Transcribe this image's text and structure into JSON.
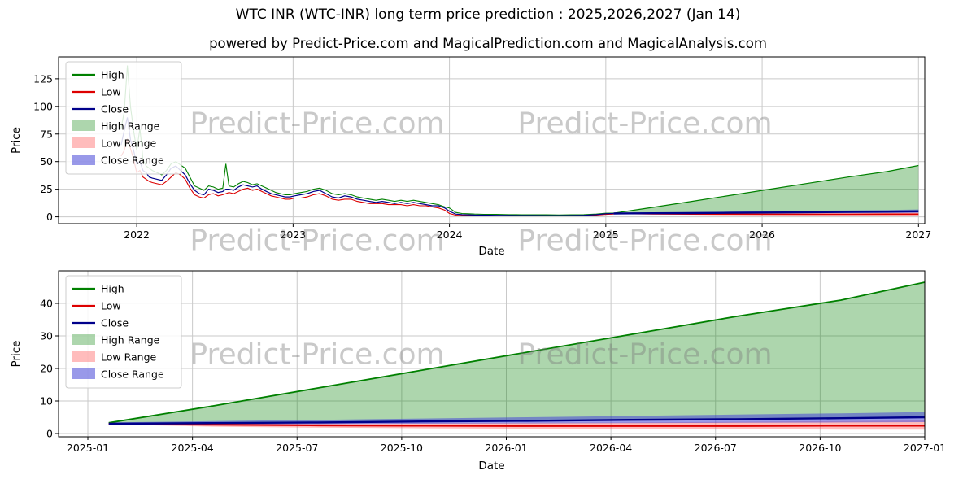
{
  "page": {
    "title": "WTC INR (WTC-INR) long term price prediction : 2025,2026,2027 (Jan 14)",
    "subtitle": "powered by Predict-Price.com and MagicalPrediction.com and MagicalAnalysis.com"
  },
  "watermark": {
    "text": "Predict-Price.com"
  },
  "legend": {
    "position": "upper left",
    "entries": [
      {
        "label": "High",
        "swatch": "line",
        "color": "#008000"
      },
      {
        "label": "Low",
        "swatch": "line",
        "color": "#dd0000"
      },
      {
        "label": "Close",
        "swatch": "line",
        "color": "#00008b"
      },
      {
        "label": "High Range",
        "swatch": "patch",
        "color": "rgba(0,128,0,0.32)"
      },
      {
        "label": "Low Range",
        "swatch": "patch",
        "color": "rgba(255,80,80,0.38)"
      },
      {
        "label": "Close Range",
        "swatch": "patch",
        "color": "rgba(70,70,215,0.55)"
      }
    ]
  },
  "chart_data": [
    {
      "type": "line",
      "title": "",
      "xlabel": "Date",
      "ylabel": "Price",
      "xlim": [
        2021.5,
        2027.04
      ],
      "ylim": [
        -6.2,
        144.8
      ],
      "grid": true,
      "x_ticks": [
        {
          "v": 2022,
          "label": "2022"
        },
        {
          "v": 2023,
          "label": "2023"
        },
        {
          "v": 2024,
          "label": "2024"
        },
        {
          "v": 2025,
          "label": "2025"
        },
        {
          "v": 2026,
          "label": "2026"
        },
        {
          "v": 2027,
          "label": "2027"
        }
      ],
      "y_ticks": [
        {
          "v": 0,
          "label": "0"
        },
        {
          "v": 25,
          "label": "25"
        },
        {
          "v": 50,
          "label": "50"
        },
        {
          "v": 75,
          "label": "75"
        },
        {
          "v": 100,
          "label": "100"
        },
        {
          "v": 125,
          "label": "125"
        }
      ],
      "series": {
        "history": {
          "x": [
            2021.9,
            2021.92,
            2021.94,
            2021.96,
            2021.98,
            2022.0,
            2022.02,
            2022.04,
            2022.06,
            2022.08,
            2022.1,
            2022.13,
            2022.16,
            2022.19,
            2022.22,
            2022.25,
            2022.28,
            2022.31,
            2022.34,
            2022.37,
            2022.4,
            2022.43,
            2022.46,
            2022.49,
            2022.52,
            2022.55,
            2022.57,
            2022.59,
            2022.62,
            2022.65,
            2022.68,
            2022.71,
            2022.74,
            2022.77,
            2022.8,
            2022.83,
            2022.86,
            2022.89,
            2022.92,
            2022.95,
            2022.98,
            2023.01,
            2023.05,
            2023.09,
            2023.13,
            2023.17,
            2023.21,
            2023.25,
            2023.29,
            2023.33,
            2023.37,
            2023.41,
            2023.45,
            2023.49,
            2023.53,
            2023.57,
            2023.61,
            2023.65,
            2023.69,
            2023.73,
            2023.77,
            2023.81,
            2023.85,
            2023.89,
            2023.93,
            2023.97,
            2024.0,
            2024.04,
            2024.08,
            2024.12,
            2024.16,
            2024.22,
            2024.3,
            2024.38,
            2024.46,
            2024.54,
            2024.62,
            2024.7,
            2024.78,
            2024.86,
            2024.94,
            2025.0,
            2025.05
          ],
          "high": [
            80,
            95,
            137,
            100,
            78,
            60,
            80,
            52,
            46,
            44,
            42,
            40,
            38,
            42,
            48,
            50,
            47,
            44,
            36,
            28,
            26,
            24,
            28,
            27,
            25,
            26,
            48,
            28,
            27,
            30,
            32,
            31,
            29,
            30,
            28,
            26,
            24,
            22,
            21,
            20,
            20,
            21,
            22,
            23,
            25,
            26,
            24,
            21,
            20,
            21,
            20,
            18,
            17,
            16,
            15,
            16,
            15,
            14,
            15,
            14,
            15,
            14,
            13,
            12,
            11,
            9,
            8,
            4,
            3,
            2.8,
            2.5,
            2.3,
            2.2,
            2,
            1.9,
            1.8,
            1.8,
            1.7,
            1.8,
            2,
            2.5,
            3.2,
            3.3
          ],
          "low": [
            55,
            60,
            70,
            62,
            52,
            40,
            42,
            36,
            34,
            32,
            31,
            30,
            29,
            32,
            36,
            40,
            38,
            34,
            26,
            20,
            18,
            17,
            20,
            21,
            19,
            20,
            21,
            22,
            21,
            23,
            25,
            26,
            24,
            25,
            23,
            21,
            19,
            18,
            17,
            16,
            16,
            17,
            17,
            18,
            20,
            21,
            19,
            16,
            15,
            16,
            16,
            14,
            13,
            12,
            12,
            12,
            11,
            11,
            11,
            10,
            11,
            10,
            10,
            9,
            8,
            6,
            3,
            1.5,
            1.2,
            1.2,
            1.1,
            1,
            1,
            0.9,
            0.9,
            0.8,
            0.8,
            0.8,
            0.9,
            1,
            1.5,
            2.2,
            2.5
          ],
          "close": [
            65,
            78,
            90,
            70,
            60,
            48,
            50,
            42,
            40,
            36,
            35,
            34,
            33,
            38,
            44,
            46,
            42,
            38,
            30,
            24,
            21,
            20,
            25,
            24,
            22,
            23,
            25,
            25,
            24,
            27,
            29,
            28,
            27,
            28,
            25,
            23,
            21,
            20,
            19,
            18,
            18,
            19,
            20,
            21,
            23,
            24,
            21,
            18,
            17,
            19,
            18,
            16,
            15,
            14,
            13,
            14,
            13,
            12,
            13,
            12,
            13,
            12,
            11,
            10,
            10,
            8,
            5,
            2.5,
            2,
            1.8,
            1.6,
            1.5,
            1.4,
            1.3,
            1.2,
            1.2,
            1.1,
            1.1,
            1.2,
            1.4,
            2,
            2.8,
            3.0
          ]
        },
        "prediction": {
          "x": [
            2025.05,
            2025.3,
            2025.55,
            2025.8,
            2026.05,
            2026.3,
            2026.55,
            2026.8,
            2027.0
          ],
          "close": [
            3.0,
            3.2,
            3.4,
            3.7,
            3.9,
            4.2,
            4.4,
            4.7,
            5.0
          ],
          "low": [
            3.0,
            2.7,
            2.5,
            2.4,
            2.3,
            2.3,
            2.3,
            2.4,
            2.4
          ],
          "high_range_upper": [
            3.3,
            8.5,
            14,
            19.5,
            25,
            30.5,
            36,
            41,
            46.5
          ],
          "close_range_upper": [
            3.4,
            3.8,
            4.2,
            4.6,
            5.0,
            5.4,
            5.8,
            6.2,
            6.6
          ],
          "close_range_lower": [
            2.8,
            2.8,
            2.9,
            3.0,
            3.1,
            3.2,
            3.3,
            3.4,
            3.5
          ],
          "low_range_upper": [
            3.1,
            3.1,
            3.1,
            3.2,
            3.3,
            3.4,
            3.6,
            3.8,
            4.0
          ],
          "low_range_lower": [
            2.8,
            2.1,
            1.8,
            1.6,
            1.5,
            1.4,
            1.3,
            1.2,
            1.2
          ]
        }
      },
      "bands": [
        {
          "name": "high-range",
          "x": "prediction.x",
          "upper": "prediction.high_range_upper",
          "lower": "prediction.close",
          "color": "rgba(0,128,0,0.32)"
        },
        {
          "name": "low-range",
          "x": "prediction.x",
          "upper": "prediction.low_range_upper",
          "lower": "prediction.low_range_lower",
          "color": "rgba(255,80,80,0.38)"
        },
        {
          "name": "close-range",
          "x": "prediction.x",
          "upper": "prediction.close_range_upper",
          "lower": "prediction.close_range_lower",
          "color": "rgba(70,70,215,0.55)"
        }
      ],
      "lines": [
        {
          "name": "high",
          "x": "history.x",
          "y": "history.high",
          "color": "#008000",
          "width": 1.1
        },
        {
          "name": "low",
          "x": "history.x",
          "y": "history.low",
          "color": "#dd0000",
          "width": 1.1
        },
        {
          "name": "close",
          "x": "history.x",
          "y": "history.close",
          "color": "#00008b",
          "width": 1.2
        },
        {
          "name": "high-pred",
          "x": "prediction.x",
          "y": "prediction.high_range_upper",
          "color": "#008000",
          "width": 1.2
        },
        {
          "name": "low-pred",
          "x": "prediction.x",
          "y": "prediction.low",
          "color": "#dd0000",
          "width": 1.6
        },
        {
          "name": "close-pred",
          "x": "prediction.x",
          "y": "prediction.close",
          "color": "#00008b",
          "width": 2.4
        }
      ]
    },
    {
      "type": "line",
      "title": "",
      "xlabel": "Date",
      "ylabel": "Price",
      "xlim": [
        2024.93,
        2027.0
      ],
      "ylim": [
        -1,
        50
      ],
      "grid": true,
      "x_ticks": [
        {
          "v": 2025.0,
          "label": "2025-01"
        },
        {
          "v": 2025.25,
          "label": "2025-04"
        },
        {
          "v": 2025.5,
          "label": "2025-07"
        },
        {
          "v": 2025.75,
          "label": "2025-10"
        },
        {
          "v": 2026.0,
          "label": "2026-01"
        },
        {
          "v": 2026.25,
          "label": "2026-04"
        },
        {
          "v": 2026.5,
          "label": "2026-07"
        },
        {
          "v": 2026.75,
          "label": "2026-10"
        },
        {
          "v": 2027.0,
          "label": "2027-01"
        }
      ],
      "y_ticks": [
        {
          "v": 0,
          "label": "0"
        },
        {
          "v": 10,
          "label": "10"
        },
        {
          "v": 20,
          "label": "20"
        },
        {
          "v": 30,
          "label": "30"
        },
        {
          "v": 40,
          "label": "40"
        }
      ],
      "series": {
        "prediction": {
          "x": [
            2025.05,
            2025.3,
            2025.55,
            2025.8,
            2026.05,
            2026.3,
            2026.55,
            2026.8,
            2027.0
          ],
          "close": [
            3.0,
            3.2,
            3.4,
            3.7,
            3.9,
            4.2,
            4.4,
            4.7,
            5.0
          ],
          "low": [
            3.0,
            2.7,
            2.5,
            2.4,
            2.3,
            2.3,
            2.3,
            2.4,
            2.4
          ],
          "high_range_upper": [
            3.3,
            8.5,
            14,
            19.5,
            25,
            30.5,
            36,
            41,
            46.5
          ],
          "close_range_upper": [
            3.4,
            3.8,
            4.2,
            4.6,
            5.0,
            5.4,
            5.8,
            6.2,
            6.6
          ],
          "close_range_lower": [
            2.8,
            2.8,
            2.9,
            3.0,
            3.1,
            3.2,
            3.3,
            3.4,
            3.5
          ],
          "low_range_upper": [
            3.1,
            3.1,
            3.1,
            3.2,
            3.3,
            3.4,
            3.6,
            3.8,
            4.0
          ],
          "low_range_lower": [
            2.8,
            2.1,
            1.8,
            1.6,
            1.5,
            1.4,
            1.3,
            1.2,
            1.2
          ]
        }
      },
      "bands": [
        {
          "name": "high-range",
          "x": "prediction.x",
          "upper": "prediction.high_range_upper",
          "lower": "prediction.close",
          "color": "rgba(0,128,0,0.32)"
        },
        {
          "name": "low-range",
          "x": "prediction.x",
          "upper": "prediction.low_range_upper",
          "lower": "prediction.low_range_lower",
          "color": "rgba(255,80,80,0.38)"
        },
        {
          "name": "close-range",
          "x": "prediction.x",
          "upper": "prediction.close_range_upper",
          "lower": "prediction.close_range_lower",
          "color": "rgba(70,70,215,0.55)"
        }
      ],
      "lines": [
        {
          "name": "high-pred",
          "x": "prediction.x",
          "y": "prediction.high_range_upper",
          "color": "#008000",
          "width": 1.8
        },
        {
          "name": "low-pred",
          "x": "prediction.x",
          "y": "prediction.low",
          "color": "#dd0000",
          "width": 2.2
        },
        {
          "name": "close-pred",
          "x": "prediction.x",
          "y": "prediction.close",
          "color": "#00008b",
          "width": 2.4
        }
      ]
    }
  ]
}
